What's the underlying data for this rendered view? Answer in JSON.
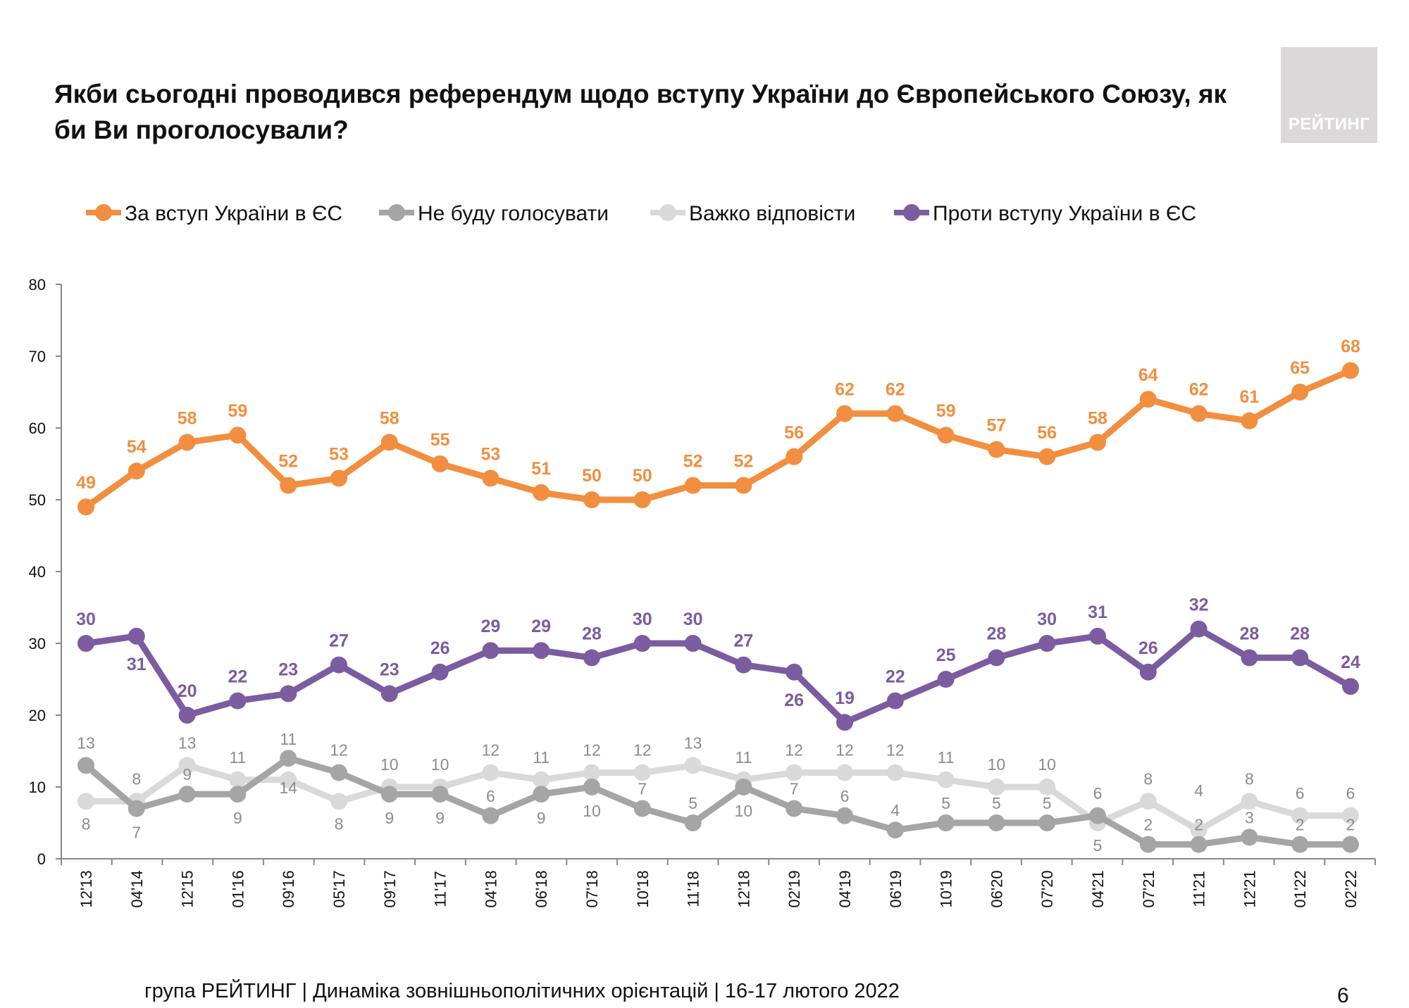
{
  "title": "Якби сьогодні проводився референдум щодо вступу України до Європейського Союзу, як би Ви проголосували?",
  "logo_text": "РЕЙТИНГ",
  "footer": "група РЕЙТИНГ |  Динаміка зовнішньополітичних орієнтацій | 16-17 лютого 2022",
  "page_number": "6",
  "chart_data": {
    "type": "line",
    "title": "",
    "xlabel": "",
    "ylabel": "",
    "ylim": [
      0,
      80
    ],
    "yticks": [
      0,
      10,
      20,
      30,
      40,
      50,
      60,
      70,
      80
    ],
    "grid": false,
    "legend_placement": "top",
    "categories": [
      "12'13",
      "04'14",
      "12'15",
      "01'16",
      "09'16",
      "05'17",
      "09'17",
      "11'17",
      "04'18",
      "06'18",
      "07'18",
      "10'18",
      "11'18",
      "12'18",
      "02'19",
      "04'19",
      "06'19",
      "10'19",
      "06'20",
      "07'20",
      "04'21",
      "07'21",
      "11'21",
      "12'21",
      "01'22",
      "02'22"
    ],
    "series": [
      {
        "name": "За вступ України в ЄС",
        "color": "#F28E3F",
        "label_color": "#F28E3F",
        "bold": true,
        "values": [
          49,
          54,
          58,
          59,
          52,
          53,
          58,
          55,
          53,
          51,
          50,
          50,
          52,
          52,
          56,
          62,
          62,
          59,
          57,
          56,
          58,
          64,
          62,
          61,
          65,
          68
        ]
      },
      {
        "name": "Не буду голосувати",
        "color": "#A5A5A5",
        "label_color": "#8C8C8C",
        "bold": false,
        "values": [
          13,
          7,
          9,
          9,
          14,
          12,
          9,
          9,
          6,
          9,
          10,
          7,
          5,
          10,
          7,
          6,
          4,
          5,
          5,
          5,
          6,
          2,
          2,
          3,
          2,
          2
        ]
      },
      {
        "name": "Важко відповісти",
        "color": "#D9D9D9",
        "label_color": "#8C8C8C",
        "bold": false,
        "values": [
          8,
          8,
          13,
          11,
          11,
          8,
          10,
          10,
          12,
          11,
          12,
          12,
          13,
          11,
          12,
          12,
          12,
          11,
          10,
          10,
          5,
          8,
          4,
          8,
          6,
          6
        ]
      },
      {
        "name": "Проти вступу України в ЄС",
        "color": "#7B5CA0",
        "label_color": "#7B5CA0",
        "bold": true,
        "values": [
          30,
          31,
          20,
          22,
          23,
          27,
          23,
          26,
          29,
          29,
          28,
          30,
          30,
          27,
          26,
          19,
          22,
          25,
          28,
          30,
          31,
          26,
          32,
          28,
          28,
          24
        ]
      }
    ]
  }
}
